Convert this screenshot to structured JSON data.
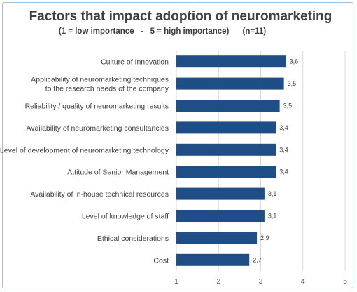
{
  "chart_data": {
    "type": "bar",
    "orientation": "horizontal",
    "title": "Factors that impact adoption of neuromarketing",
    "subtitle": "(1 = low importance   -   5 = high importance)      (n=11)",
    "categories": [
      [
        "Culture of Innovation"
      ],
      [
        "Applicability of neuromarketing techniques",
        "to the research needs of the company"
      ],
      [
        "Reliability / quality of neuromarketing results"
      ],
      [
        "Availability of neuromarketing consultancies"
      ],
      [
        "Level of development of neuromarketing technology"
      ],
      [
        "Attitude of Senior Management"
      ],
      [
        "Availability of in-house technical resources"
      ],
      [
        "Level of knowledge of staff"
      ],
      [
        "Ethical considerations"
      ],
      [
        "Cost"
      ]
    ],
    "values": [
      3.6,
      3.55,
      3.45,
      3.36,
      3.36,
      3.36,
      3.09,
      3.09,
      2.91,
      2.73
    ],
    "value_labels": [
      "3,6",
      "3,5",
      "3,5",
      "3,4",
      "3,4",
      "3,4",
      "3,1",
      "3,1",
      "2,9",
      "2,7"
    ],
    "xlim": [
      1,
      5
    ],
    "x_ticks": [
      "1",
      "2",
      "3",
      "4",
      "5"
    ],
    "grid": true,
    "bar_color": "#1f4e87"
  }
}
